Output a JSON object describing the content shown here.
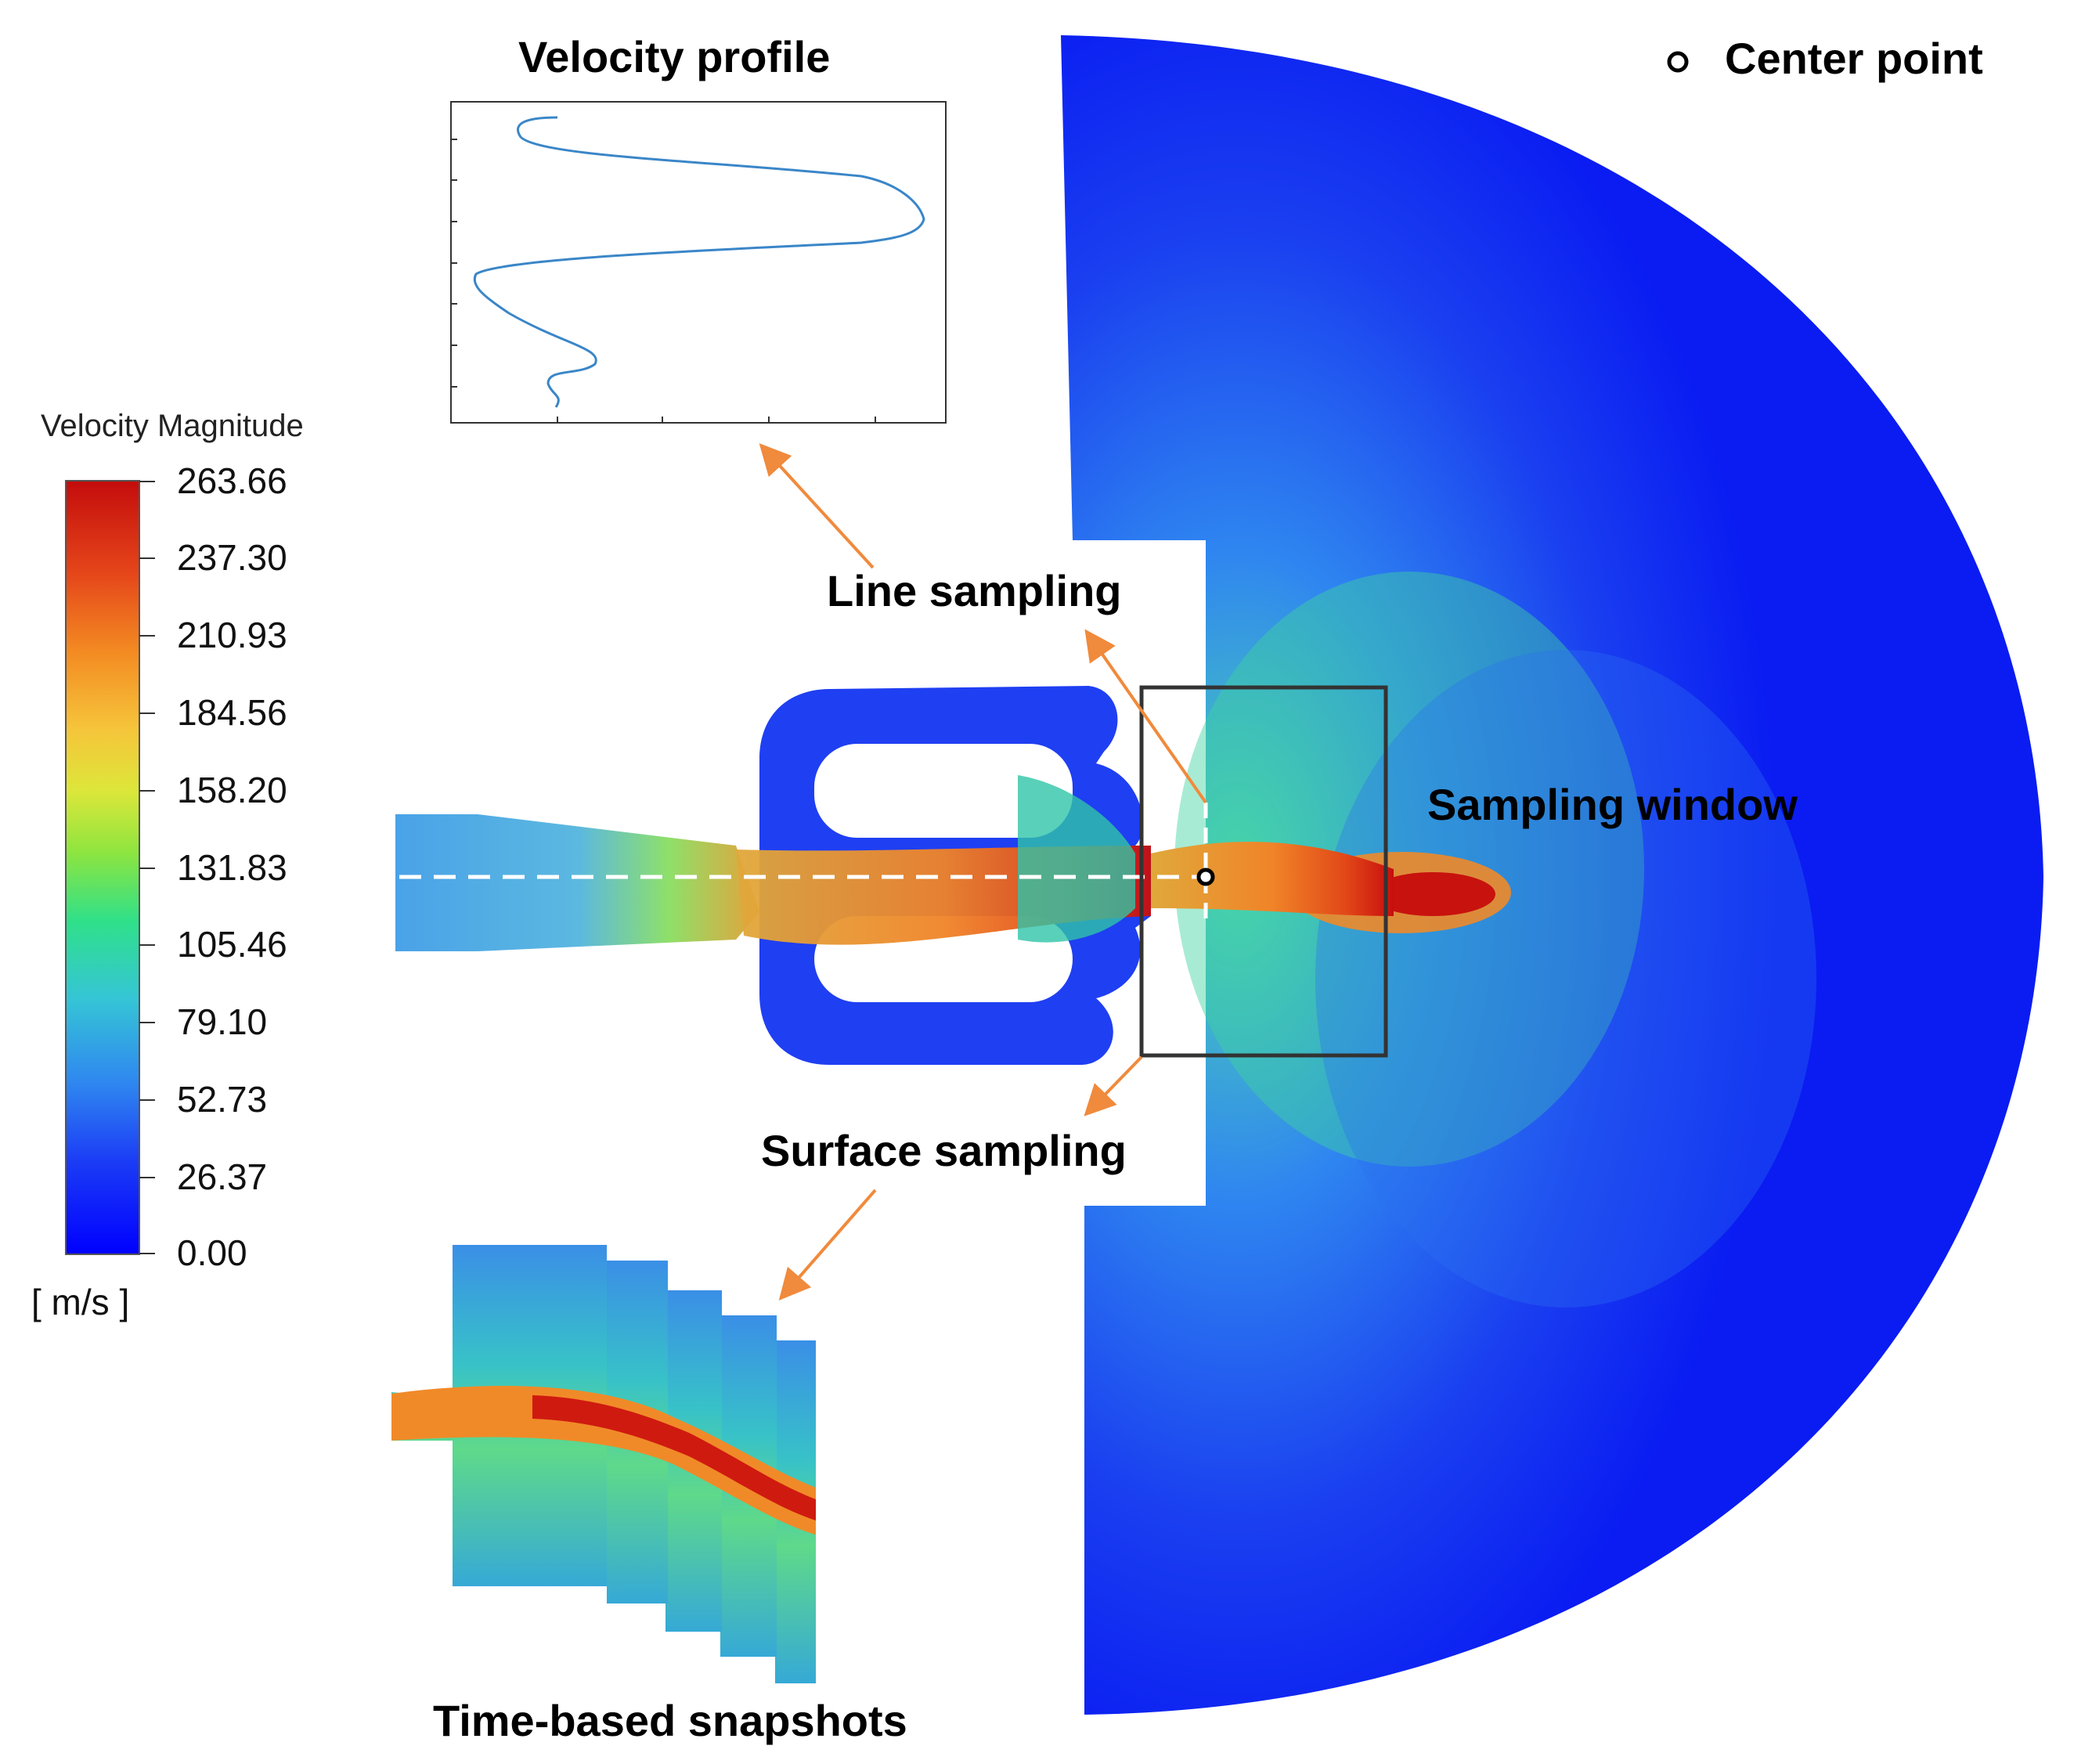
{
  "labels": {
    "velocity_profile": "Velocity profile",
    "center_point": "Center point",
    "line_sampling": "Line sampling",
    "sampling_window": "Sampling window",
    "surface_sampling": "Surface sampling",
    "time_snapshots": "Time-based snapshots"
  },
  "colorbar": {
    "title": "Velocity Magnitude",
    "unit": "[ m/s ]",
    "ticks": [
      "263.66",
      "237.30",
      "210.93",
      "184.56",
      "158.20",
      "131.83",
      "105.46",
      "79.10",
      "52.73",
      "26.37",
      "0.00"
    ],
    "colors": [
      "#0000ff",
      "#2e7bf3",
      "#3fc9d8",
      "#2fe08a",
      "#b6e83a",
      "#f2e23b",
      "#f5a623",
      "#ef5b16",
      "#cc0f0f"
    ]
  },
  "colors": {
    "arrow": "#f08a3c",
    "frame": "#333333",
    "profile_line": "#3a86c8",
    "dashed_line": "#ffffff"
  }
}
